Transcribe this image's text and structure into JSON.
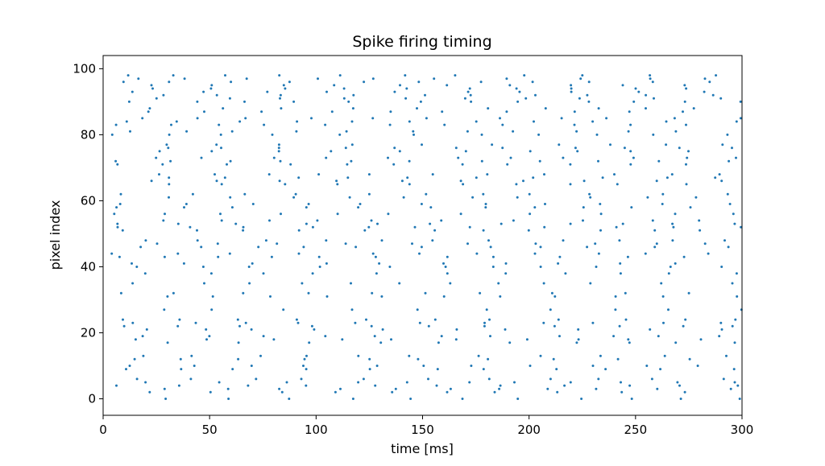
{
  "chart_data": {
    "type": "scatter",
    "title": "Spike firing timing",
    "xlabel": "time [ms]",
    "ylabel": "pixel index",
    "xlim": [
      0,
      300
    ],
    "ylim": [
      -5,
      104
    ],
    "xticks": [
      0,
      50,
      100,
      150,
      200,
      250,
      300
    ],
    "yticks": [
      0,
      20,
      40,
      60,
      80,
      100
    ],
    "grid": false,
    "marker_color": "#1f77b4",
    "series": [
      {
        "pixels": 100,
        "start_ms": 4,
        "end_ms": 300,
        "mean_interval_ms": 28,
        "jitter_ms": 7
      }
    ]
  }
}
